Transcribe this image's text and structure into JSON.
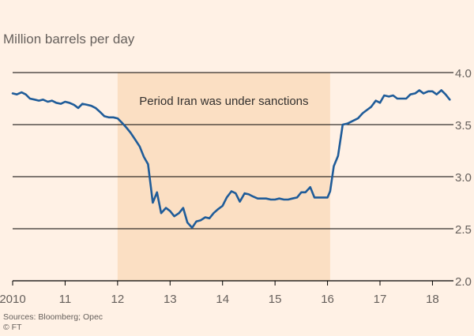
{
  "chart_data": {
    "type": "line",
    "ylabel": "Million barrels per day",
    "ylim": [
      2.0,
      4.0
    ],
    "y_ticks": [
      "2.0",
      "2.5",
      "3.0",
      "3.5",
      "4.0"
    ],
    "xlim": [
      2010.0,
      2018.4
    ],
    "x_ticks": [
      {
        "value": 2010,
        "label": "2010"
      },
      {
        "value": 2011,
        "label": "11"
      },
      {
        "value": 2012,
        "label": "12"
      },
      {
        "value": 2013,
        "label": "13"
      },
      {
        "value": 2014,
        "label": "14"
      },
      {
        "value": 2015,
        "label": "15"
      },
      {
        "value": 2016,
        "label": "16"
      },
      {
        "value": 2017,
        "label": "17"
      },
      {
        "value": 2018,
        "label": "18"
      }
    ],
    "shaded_period": {
      "start": 2012.0,
      "end": 2016.05,
      "label": "Period Iran was under sanctions"
    },
    "series": [
      {
        "color": "#1f5c99",
        "points": [
          [
            2010.0,
            3.8
          ],
          [
            2010.08,
            3.79
          ],
          [
            2010.17,
            3.81
          ],
          [
            2010.25,
            3.79
          ],
          [
            2010.33,
            3.75
          ],
          [
            2010.42,
            3.74
          ],
          [
            2010.5,
            3.73
          ],
          [
            2010.58,
            3.74
          ],
          [
            2010.67,
            3.72
          ],
          [
            2010.75,
            3.73
          ],
          [
            2010.83,
            3.71
          ],
          [
            2010.92,
            3.7
          ],
          [
            2011.0,
            3.72
          ],
          [
            2011.08,
            3.71
          ],
          [
            2011.17,
            3.69
          ],
          [
            2011.25,
            3.66
          ],
          [
            2011.33,
            3.7
          ],
          [
            2011.42,
            3.69
          ],
          [
            2011.5,
            3.68
          ],
          [
            2011.58,
            3.66
          ],
          [
            2011.67,
            3.62
          ],
          [
            2011.75,
            3.58
          ],
          [
            2011.83,
            3.57
          ],
          [
            2011.92,
            3.57
          ],
          [
            2012.0,
            3.56
          ],
          [
            2012.08,
            3.52
          ],
          [
            2012.17,
            3.47
          ],
          [
            2012.25,
            3.42
          ],
          [
            2012.33,
            3.36
          ],
          [
            2012.42,
            3.29
          ],
          [
            2012.5,
            3.19
          ],
          [
            2012.58,
            3.12
          ],
          [
            2012.67,
            2.75
          ],
          [
            2012.75,
            2.85
          ],
          [
            2012.83,
            2.65
          ],
          [
            2012.92,
            2.7
          ],
          [
            2013.0,
            2.67
          ],
          [
            2013.08,
            2.62
          ],
          [
            2013.17,
            2.65
          ],
          [
            2013.25,
            2.7
          ],
          [
            2013.33,
            2.56
          ],
          [
            2013.42,
            2.51
          ],
          [
            2013.5,
            2.57
          ],
          [
            2013.58,
            2.58
          ],
          [
            2013.67,
            2.61
          ],
          [
            2013.75,
            2.6
          ],
          [
            2013.83,
            2.65
          ],
          [
            2013.92,
            2.69
          ],
          [
            2014.0,
            2.72
          ],
          [
            2014.08,
            2.8
          ],
          [
            2014.17,
            2.86
          ],
          [
            2014.25,
            2.84
          ],
          [
            2014.33,
            2.76
          ],
          [
            2014.42,
            2.84
          ],
          [
            2014.5,
            2.83
          ],
          [
            2014.58,
            2.81
          ],
          [
            2014.67,
            2.79
          ],
          [
            2014.75,
            2.79
          ],
          [
            2014.83,
            2.79
          ],
          [
            2014.92,
            2.78
          ],
          [
            2015.0,
            2.78
          ],
          [
            2015.08,
            2.79
          ],
          [
            2015.17,
            2.78
          ],
          [
            2015.25,
            2.78
          ],
          [
            2015.33,
            2.79
          ],
          [
            2015.42,
            2.8
          ],
          [
            2015.5,
            2.85
          ],
          [
            2015.58,
            2.85
          ],
          [
            2015.67,
            2.9
          ],
          [
            2015.75,
            2.8
          ],
          [
            2015.83,
            2.8
          ],
          [
            2015.92,
            2.8
          ],
          [
            2016.0,
            2.8
          ],
          [
            2016.05,
            2.86
          ],
          [
            2016.12,
            3.1
          ],
          [
            2016.2,
            3.2
          ],
          [
            2016.29,
            3.5
          ],
          [
            2016.38,
            3.51
          ],
          [
            2016.5,
            3.54
          ],
          [
            2016.58,
            3.56
          ],
          [
            2016.67,
            3.61
          ],
          [
            2016.75,
            3.64
          ],
          [
            2016.83,
            3.67
          ],
          [
            2016.92,
            3.73
          ],
          [
            2017.0,
            3.71
          ],
          [
            2017.08,
            3.78
          ],
          [
            2017.17,
            3.77
          ],
          [
            2017.25,
            3.78
          ],
          [
            2017.33,
            3.75
          ],
          [
            2017.42,
            3.75
          ],
          [
            2017.5,
            3.75
          ],
          [
            2017.58,
            3.79
          ],
          [
            2017.67,
            3.8
          ],
          [
            2017.75,
            3.83
          ],
          [
            2017.83,
            3.8
          ],
          [
            2017.92,
            3.82
          ],
          [
            2018.0,
            3.82
          ],
          [
            2018.08,
            3.79
          ],
          [
            2018.17,
            3.83
          ],
          [
            2018.25,
            3.79
          ],
          [
            2018.33,
            3.74
          ]
        ]
      }
    ]
  },
  "footer": {
    "sources": "Sources: Bloomberg; Opec",
    "copyright": "© FT"
  },
  "colors": {
    "background": "#fff1e5",
    "shade": "#fbdfc3",
    "line": "#1f5c99",
    "grid": "#000000",
    "text": "#66605c"
  }
}
